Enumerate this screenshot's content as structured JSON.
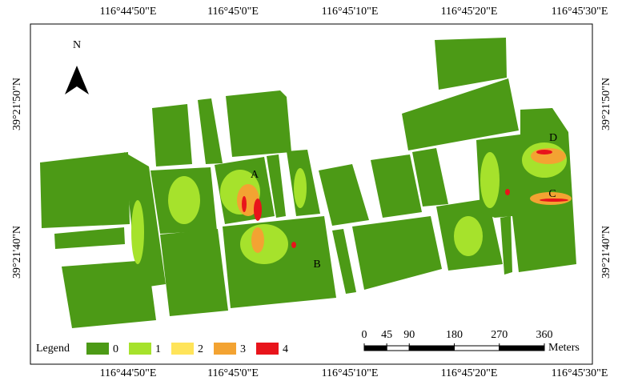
{
  "north": "N",
  "coordinates": {
    "top": [
      "116°44'50\"E",
      "116°45'0\"E",
      "116°45'10\"E",
      "116°45'20\"E",
      "116°45'30\"E"
    ],
    "bottom": [
      "116°44'50\"E",
      "116°45'0\"E",
      "116°45'10\"E",
      "116°45'20\"E",
      "116°45'30\"E"
    ],
    "left": [
      "39°21'50\"N",
      "39°21'40\"N"
    ],
    "right": [
      "39°21'50\"N",
      "39°21'40\"N"
    ]
  },
  "field_labels": [
    "A",
    "B",
    "C",
    "D"
  ],
  "legend": {
    "title": "Legend",
    "classes": [
      {
        "value": 0,
        "color": "#4c9a16"
      },
      {
        "value": 1,
        "color": "#a6e22c"
      },
      {
        "value": 2,
        "color": "#ffe45a"
      },
      {
        "value": 3,
        "color": "#f3a332"
      },
      {
        "value": 4,
        "color": "#e8141b"
      }
    ]
  },
  "scale_bar": {
    "ticks": [
      0,
      45,
      90,
      180,
      270,
      360
    ],
    "unit": "Meters"
  }
}
